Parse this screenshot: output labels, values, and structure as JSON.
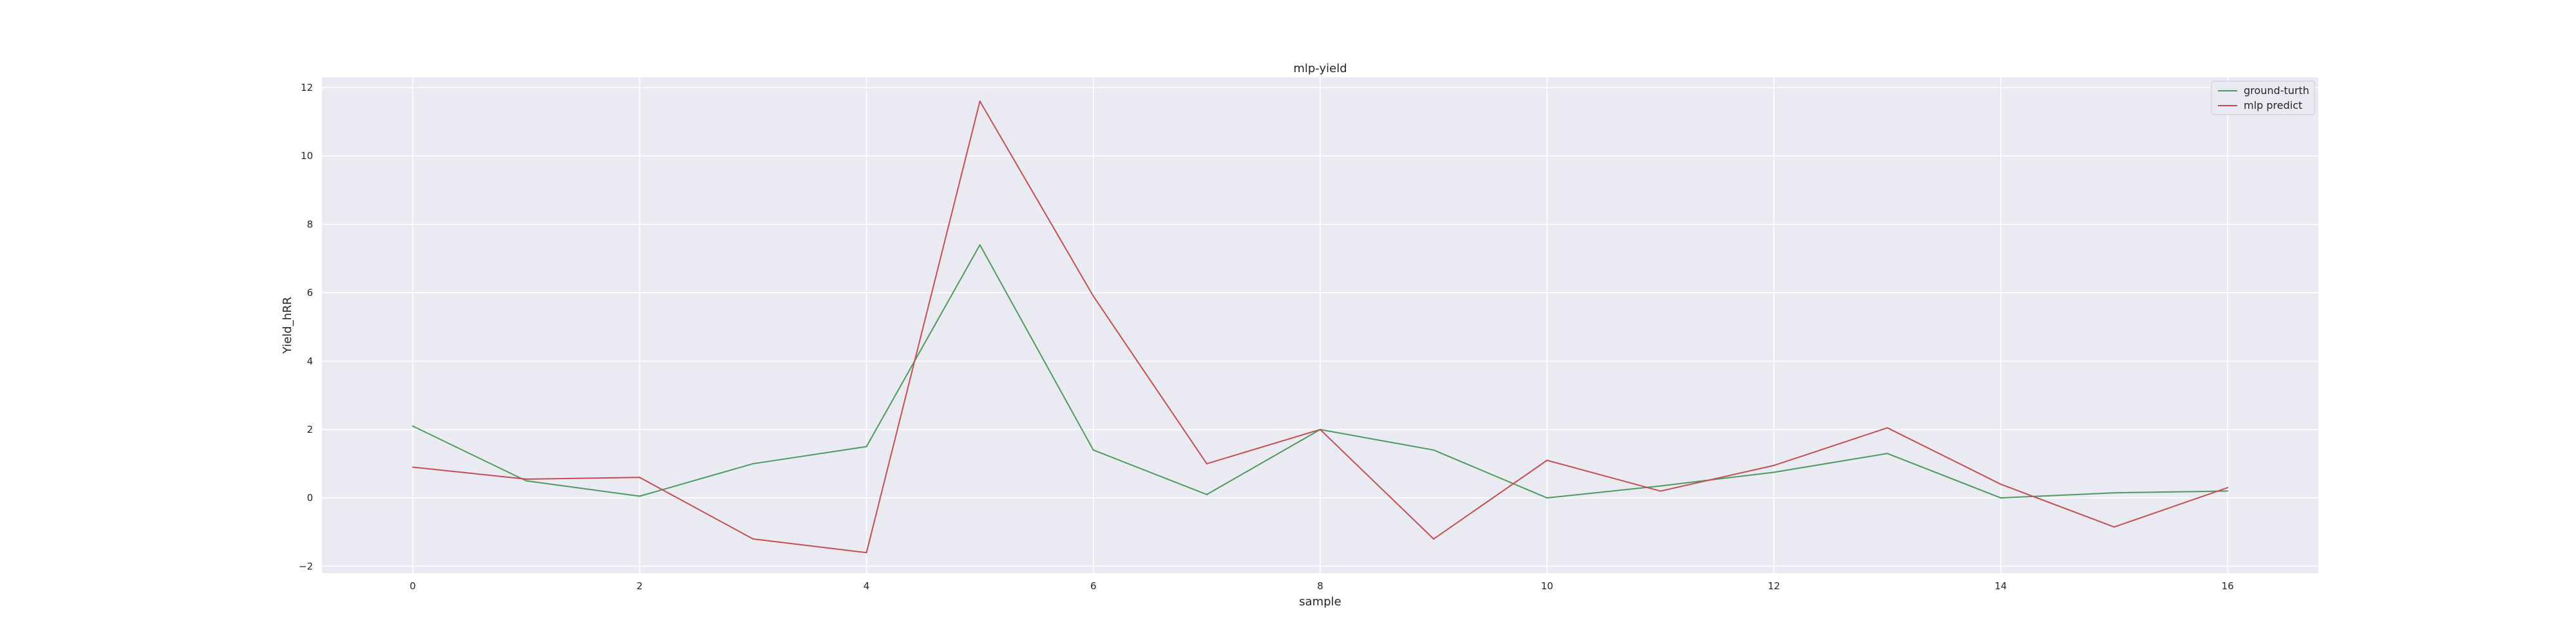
{
  "chart_data": {
    "type": "line",
    "title": "mlp-yield",
    "xlabel": "sample",
    "ylabel": "Yield_hRR",
    "x": [
      0,
      1,
      2,
      3,
      4,
      5,
      6,
      7,
      8,
      9,
      10,
      11,
      12,
      13,
      14,
      15,
      16
    ],
    "xlim": [
      -0.8,
      16.8
    ],
    "ylim": [
      -2.2,
      12.3
    ],
    "xticks": [
      0,
      2,
      4,
      6,
      8,
      10,
      12,
      14,
      16
    ],
    "yticks": [
      -2,
      0,
      2,
      4,
      6,
      8,
      10,
      12
    ],
    "grid": true,
    "legend_position": "top-right",
    "series": [
      {
        "name": "ground-turth",
        "color": "#4c9a5e",
        "values": [
          2.1,
          0.5,
          0.05,
          1.0,
          1.5,
          7.4,
          1.4,
          0.1,
          2.0,
          1.4,
          0.0,
          0.35,
          0.75,
          1.3,
          0.0,
          0.15,
          0.2
        ]
      },
      {
        "name": "mlp predict",
        "color": "#c44e52",
        "values": [
          0.9,
          0.55,
          0.6,
          -1.2,
          -1.6,
          11.6,
          5.9,
          1.0,
          2.0,
          -1.2,
          1.1,
          0.2,
          0.95,
          2.05,
          0.4,
          -0.85,
          0.3
        ]
      }
    ]
  }
}
